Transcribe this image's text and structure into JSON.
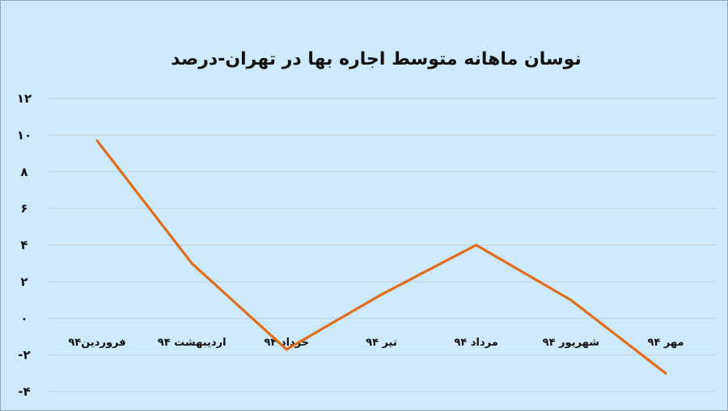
{
  "chart_data": {
    "type": "line",
    "title": "نوسان ماهانه متوسط اجاره بها در تهران-درصد",
    "xlabel": "",
    "ylabel": "",
    "ylim": [
      -4,
      12
    ],
    "yticks": [
      12,
      10,
      8,
      6,
      4,
      2,
      0,
      -2,
      -4
    ],
    "ytick_labels": [
      "۱۲",
      "۱۰",
      "۸",
      "۶",
      "۴",
      "۲",
      "۰",
      "-۲",
      "-۴"
    ],
    "categories": [
      "فروردین۹۴",
      "اردیبهشت ۹۴",
      "خرداد ۹۴",
      "تیر ۹۴",
      "مرداد ۹۴",
      "شهریور ۹۴",
      "مهر ۹۴"
    ],
    "series": [
      {
        "color": "#e06c1c",
        "values": [
          9.7,
          3.0,
          -1.7,
          1.3,
          4.0,
          1.0,
          -3.0
        ]
      }
    ],
    "grid": true,
    "legend": "none"
  }
}
